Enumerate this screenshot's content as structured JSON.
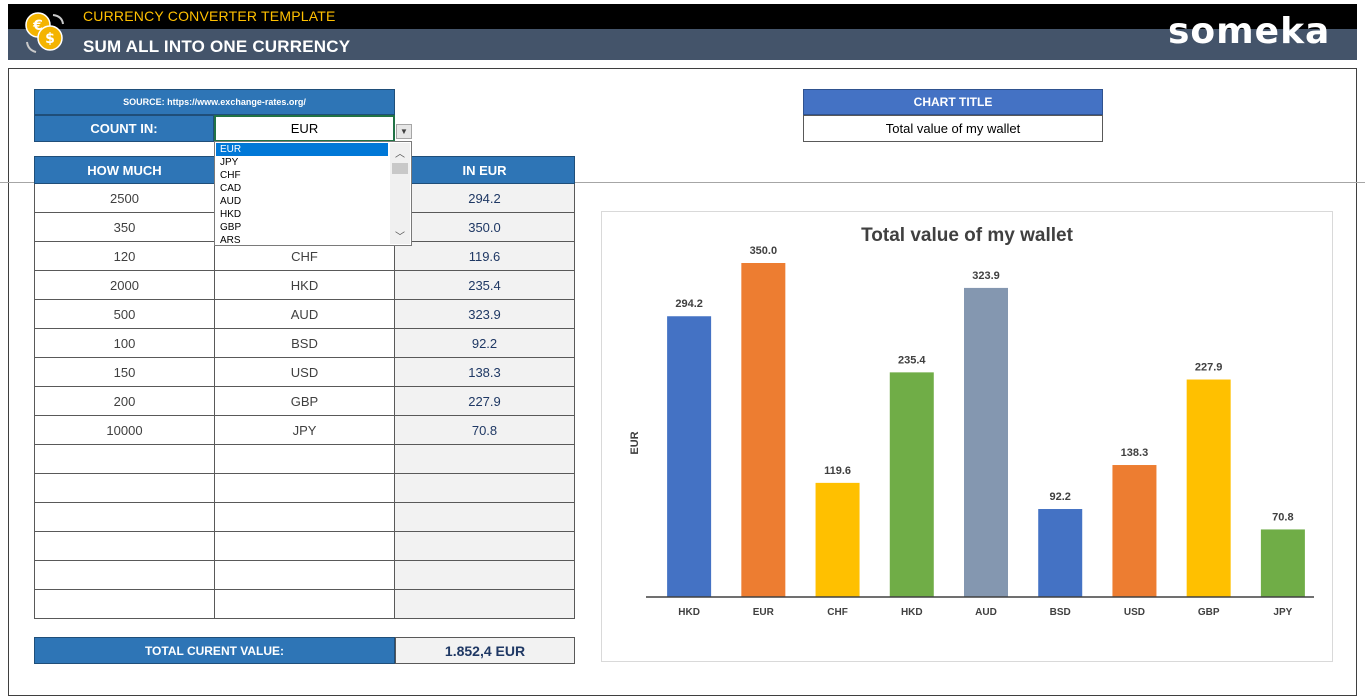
{
  "header": {
    "app_title": "CURRENCY CONVERTER TEMPLATE",
    "subtitle": "SUM ALL INTO ONE CURRENCY",
    "brand": "someka"
  },
  "source": {
    "label": "SOURCE: https://www.exchange-rates.org/"
  },
  "count_in": {
    "label": "COUNT IN:",
    "value": "EUR",
    "options": [
      "EUR",
      "JPY",
      "CHF",
      "CAD",
      "AUD",
      "HKD",
      "GBP",
      "ARS"
    ],
    "selected_index": 0
  },
  "table": {
    "headers": [
      "HOW MUCH",
      "",
      "IN EUR"
    ],
    "rows": [
      {
        "amount": "2500",
        "currency": "",
        "in_eur": "294.2"
      },
      {
        "amount": "350",
        "currency": "",
        "in_eur": "350.0"
      },
      {
        "amount": "120",
        "currency": "CHF",
        "in_eur": "119.6"
      },
      {
        "amount": "2000",
        "currency": "HKD",
        "in_eur": "235.4"
      },
      {
        "amount": "500",
        "currency": "AUD",
        "in_eur": "323.9"
      },
      {
        "amount": "100",
        "currency": "BSD",
        "in_eur": "92.2"
      },
      {
        "amount": "150",
        "currency": "USD",
        "in_eur": "138.3"
      },
      {
        "amount": "200",
        "currency": "GBP",
        "in_eur": "227.9"
      },
      {
        "amount": "10000",
        "currency": "JPY",
        "in_eur": "70.8"
      },
      {
        "amount": "",
        "currency": "",
        "in_eur": ""
      },
      {
        "amount": "",
        "currency": "",
        "in_eur": ""
      },
      {
        "amount": "",
        "currency": "",
        "in_eur": ""
      },
      {
        "amount": "",
        "currency": "",
        "in_eur": ""
      },
      {
        "amount": "",
        "currency": "",
        "in_eur": ""
      },
      {
        "amount": "",
        "currency": "",
        "in_eur": ""
      }
    ]
  },
  "total": {
    "label": "TOTAL CURENT VALUE:",
    "value": "1.852,4 EUR"
  },
  "chart_title_input": {
    "label": "CHART TITLE",
    "value": "Total value of my wallet"
  },
  "chart_data": {
    "type": "bar",
    "title": "Total value of my wallet",
    "xlabel": "",
    "ylabel": "EUR",
    "categories": [
      "HKD",
      "EUR",
      "CHF",
      "HKD",
      "AUD",
      "BSD",
      "USD",
      "GBP",
      "JPY"
    ],
    "values": [
      294.2,
      350.0,
      119.6,
      235.4,
      323.9,
      92.2,
      138.3,
      227.9,
      70.8
    ],
    "value_labels": [
      "294.2",
      "350.0",
      "119.6",
      "235.4",
      "323.9",
      "92.2",
      "138.3",
      "227.9",
      "70.8"
    ],
    "colors": [
      "#4472c4",
      "#ed7d31",
      "#ffc000",
      "#70ad47",
      "#8497b0",
      "#4472c4",
      "#ed7d31",
      "#ffc000",
      "#70ad47"
    ],
    "ylim": [
      0,
      400
    ],
    "grid": false,
    "legend": "none"
  }
}
